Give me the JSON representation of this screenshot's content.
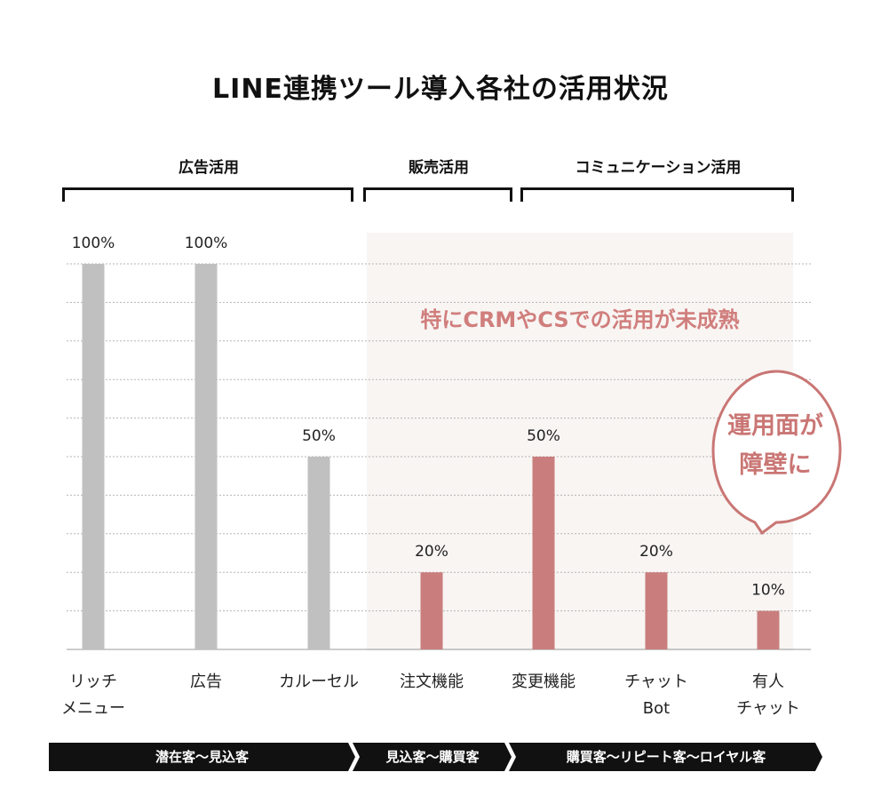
{
  "title": "LINE連携ツール導入各社の活用状況",
  "groups": [
    {
      "label": "広告活用"
    },
    {
      "label": "販売活用"
    },
    {
      "label": "コミュニケーション活用"
    }
  ],
  "highlight_text": "特にCRMやCSでの活用が未成熟",
  "bubble": {
    "line1": "運用面が",
    "line2": "障壁に"
  },
  "stages": [
    {
      "label": "潜在客〜見込客"
    },
    {
      "label": "見込客〜購買客"
    },
    {
      "label": "購買客〜リピート客〜ロイヤル客"
    }
  ],
  "colors": {
    "gray_bar": "#c0c0c0",
    "accent_bar": "#c97e7d",
    "accent_text": "#d07e7c",
    "stage_bg": "#111111"
  },
  "chart_data": {
    "type": "bar",
    "categories": [
      {
        "line1": "リッチ",
        "line2": "メニュー"
      },
      {
        "line1": "広告",
        "line2": ""
      },
      {
        "line1": "カルーセル",
        "line2": ""
      },
      {
        "line1": "注文機能",
        "line2": ""
      },
      {
        "line1": "変更機能",
        "line2": ""
      },
      {
        "line1": "チャット",
        "line2": "Bot"
      },
      {
        "line1": "有人",
        "line2": "チャット"
      }
    ],
    "values": [
      100,
      100,
      50,
      20,
      50,
      20,
      10
    ],
    "data_labels": [
      "100%",
      "100%",
      "50%",
      "20%",
      "50%",
      "20%",
      "10%"
    ],
    "ylim": [
      0,
      100
    ],
    "grid": "dotted",
    "bar_colors": [
      "#c0c0c0",
      "#c0c0c0",
      "#c0c0c0",
      "#c97e7d",
      "#c97e7d",
      "#c97e7d",
      "#c97e7d"
    ]
  }
}
